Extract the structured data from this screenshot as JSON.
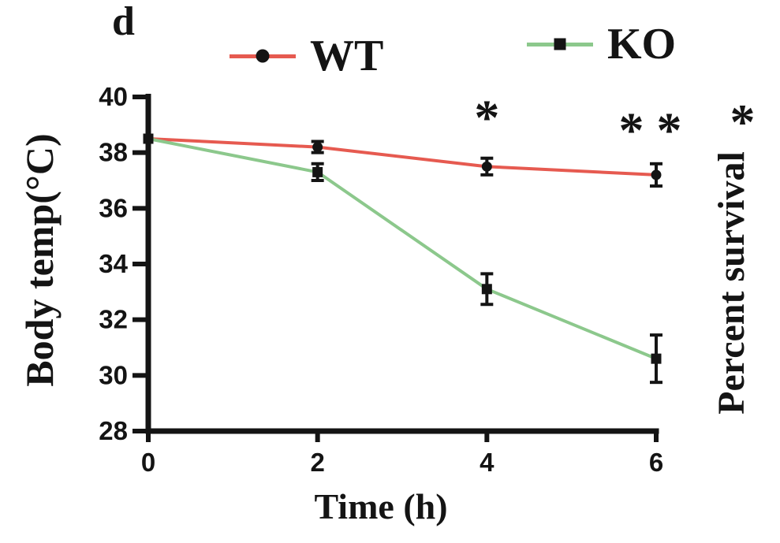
{
  "panel_label": "d",
  "legend": [
    {
      "label": "WT",
      "line_color": "#e65a50",
      "marker": "circle",
      "marker_color": "#141414"
    },
    {
      "label": "KO",
      "line_color": "#8cc88c",
      "marker": "square",
      "marker_color": "#141414"
    }
  ],
  "axis_labels": {
    "y_left": "Body temp(°C)",
    "x_bottom": "Time (h)",
    "y_right": "Percent survival"
  },
  "colors": {
    "axis": "#141414",
    "text": "#141414",
    "wt_line": "#e65a50",
    "ko_line": "#8cc88c",
    "background": "#ffffff"
  },
  "chart_data": {
    "type": "line",
    "title": "",
    "xlabel": "Time (h)",
    "ylabel": "Body temp(°C)",
    "ylabel_right": "Percent survival",
    "x": [
      0,
      2,
      4,
      6
    ],
    "xlim": [
      0,
      6
    ],
    "ylim": [
      28,
      40
    ],
    "xticks": [
      0,
      2,
      4,
      6
    ],
    "yticks": [
      40,
      38,
      36,
      34,
      32,
      30,
      28
    ],
    "grid": false,
    "legend_position": "top",
    "series": [
      {
        "name": "WT",
        "color": "#e65a50",
        "marker": "circle",
        "marker_color": "#141414",
        "values": [
          38.5,
          38.2,
          37.5,
          37.2
        ],
        "errors": [
          0,
          0.2,
          0.3,
          0.4
        ]
      },
      {
        "name": "KO",
        "color": "#8cc88c",
        "marker": "square",
        "marker_color": "#141414",
        "values": [
          38.5,
          37.3,
          33.1,
          30.6
        ],
        "errors": [
          0,
          0.3,
          0.55,
          0.85
        ]
      }
    ],
    "annotations": [
      {
        "name": "significance-4h",
        "text": "*",
        "x": 4.0,
        "y": 38.65
      },
      {
        "name": "significance-6h",
        "text": "* *",
        "x": 5.93,
        "y": 38.2
      },
      {
        "name": "edge-artifact",
        "text": "*",
        "x": 7.02,
        "y": 38.5,
        "color": "#d2d2d2"
      }
    ]
  }
}
